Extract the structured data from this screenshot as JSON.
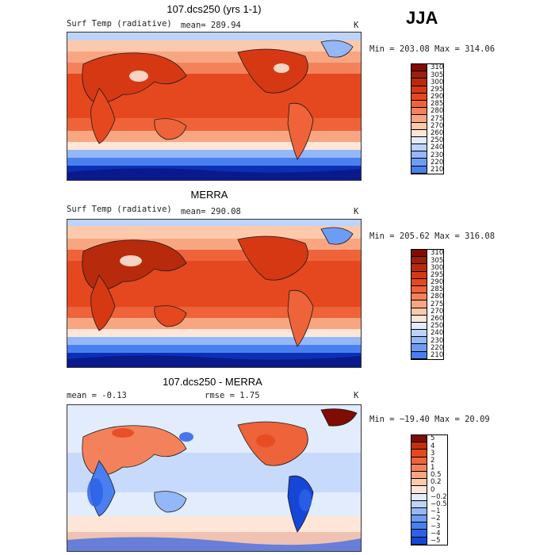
{
  "season": "JJA",
  "colors": {
    "temp_scale": [
      "#0a1a8c",
      "#0b2fb5",
      "#1546d6",
      "#2d62e8",
      "#4a7ff0",
      "#6e9cf5",
      "#94b7f7",
      "#bdd3fa",
      "#e2ecfd",
      "#fde6d8",
      "#fcc9ad",
      "#f8a682",
      "#f3825c",
      "#ee6339",
      "#e5481f",
      "#d63814",
      "#b82a0c",
      "#9c1f08",
      "#800c04"
    ],
    "diff_scale": [
      "#0a1a8c",
      "#1546d6",
      "#2d62e8",
      "#4a7ff0",
      "#6e9cf5",
      "#94b7f7",
      "#bdd3fa",
      "#e2ecfd",
      "#fde6d8",
      "#fcc9ad",
      "#f8a682",
      "#f3825c",
      "#ee6339",
      "#e5481f",
      "#c3300f",
      "#800c04"
    ],
    "land_outline": "#1a1a1a"
  },
  "panels": [
    {
      "id": "model",
      "title": "107.dcs250 (yrs 1-1)",
      "left_label": "Surf Temp (radiative)",
      "center_label": "mean= 289.94",
      "units": "K",
      "minmax": "Min = 203.08 Max = 314.06",
      "colorbar_labels": [
        "310",
        "305",
        "300",
        "295",
        "290",
        "285",
        "280",
        "275",
        "270",
        "260",
        "250",
        "240",
        "230",
        "220",
        "210"
      ],
      "scale": "temp"
    },
    {
      "id": "obs",
      "title": "MERRA",
      "left_label": "Surf Temp (radiative)",
      "center_label": "mean= 290.08",
      "units": "K",
      "minmax": "Min = 205.62 Max = 316.08",
      "colorbar_labels": [
        "310",
        "305",
        "300",
        "295",
        "290",
        "285",
        "280",
        "275",
        "270",
        "260",
        "250",
        "240",
        "230",
        "220",
        "210"
      ],
      "scale": "temp"
    },
    {
      "id": "diff",
      "title": "107.dcs250 - MERRA",
      "left_label": "mean =   -0.13",
      "center_label": "rmse =    1.75",
      "units": "K",
      "minmax": "Min = −19.40 Max =  20.09",
      "colorbar_labels": [
        "5",
        "4",
        "3",
        "2",
        "1",
        "0.5",
        "0.2",
        "0",
        "−0.2",
        "−0.5",
        "−1",
        "−2",
        "−3",
        "−4",
        "−5"
      ],
      "scale": "diff"
    }
  ]
}
